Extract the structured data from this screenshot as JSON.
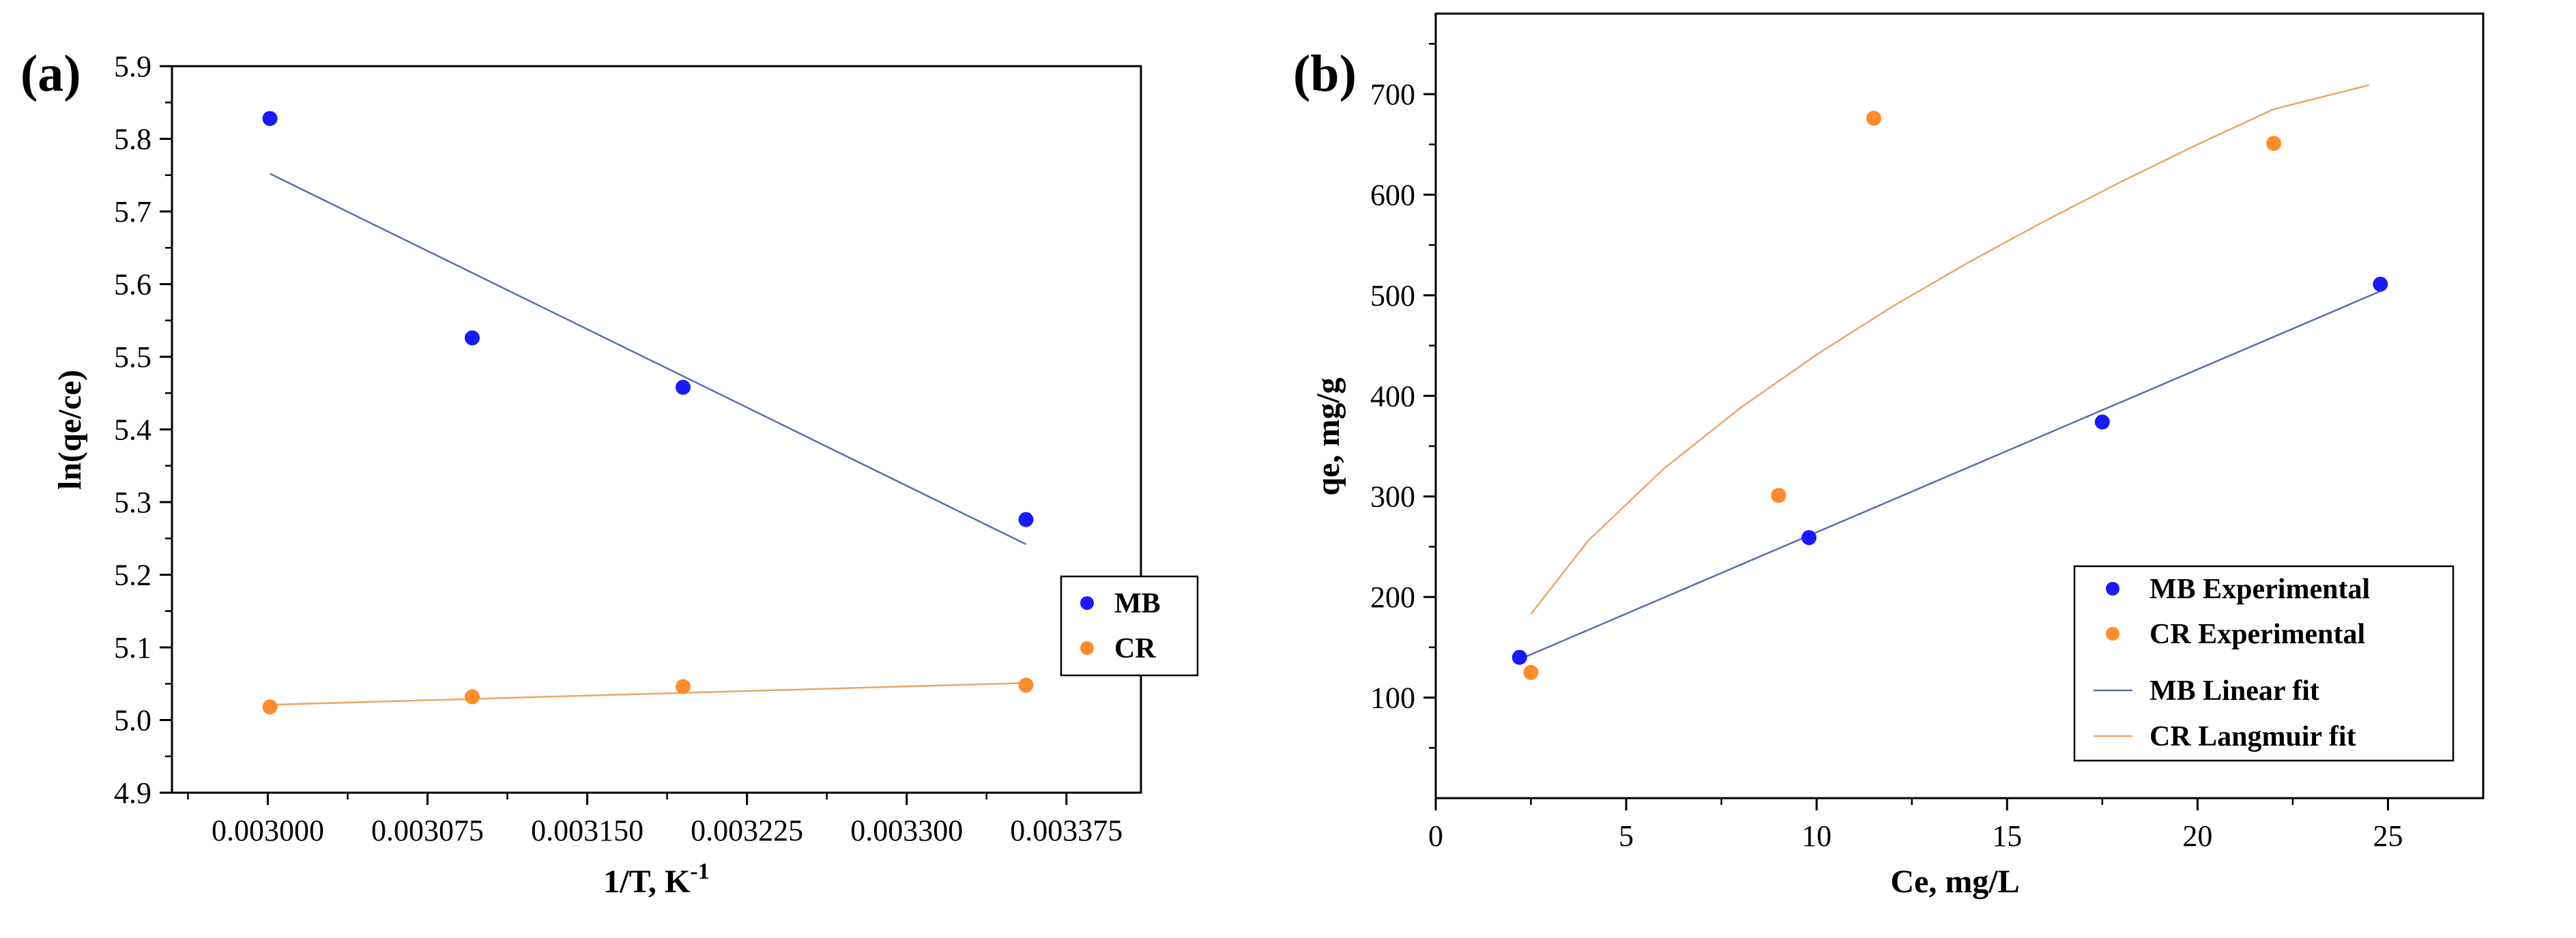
{
  "chart_data": [
    {
      "panel": "(a)",
      "type": "scatter",
      "xlabel": "1/T, K",
      "xlabel_sup": "-1",
      "ylabel": "ln(qe/ce)",
      "xlim": [
        0.002955,
        0.00341
      ],
      "ylim": [
        4.9,
        5.9
      ],
      "xticks": [
        0.003,
        0.003075,
        0.00315,
        0.003225,
        0.0033,
        0.003375
      ],
      "xtick_labels": [
        "0.003000",
        "0.003075",
        "0.003150",
        "0.003225",
        "0.003300",
        "0.003375"
      ],
      "yticks": [
        4.9,
        5.0,
        5.1,
        5.2,
        5.3,
        5.4,
        5.5,
        5.6,
        5.7,
        5.8,
        5.9
      ],
      "ytick_labels": [
        "4.9",
        "5.0",
        "5.1",
        "5.2",
        "5.3",
        "5.4",
        "5.5",
        "5.6",
        "5.7",
        "5.8",
        "5.9"
      ],
      "legend": "right",
      "series": [
        {
          "name": "MB",
          "kind": "points",
          "color": "#1a1aff",
          "x": [
            0.003001,
            0.003096,
            0.003195,
            0.003356
          ],
          "y": [
            5.828,
            5.526,
            5.458,
            5.276
          ]
        },
        {
          "name": "CR",
          "kind": "points",
          "color": "#ff8c2a",
          "x": [
            0.003001,
            0.003096,
            0.003195,
            0.003356
          ],
          "y": [
            5.018,
            5.032,
            5.046,
            5.048
          ]
        },
        {
          "name": "MB fit",
          "kind": "line",
          "color": "#5a6fb0",
          "legend": false,
          "x": [
            0.003001,
            0.003356
          ],
          "y": [
            5.752,
            5.242
          ]
        },
        {
          "name": "CR fit",
          "kind": "line",
          "color": "#e8a66a",
          "legend": false,
          "x": [
            0.003001,
            0.003356
          ],
          "y": [
            5.021,
            5.051
          ]
        }
      ]
    },
    {
      "panel": "(b)",
      "type": "scatter",
      "xlabel": "Ce, mg/L",
      "ylabel": "qe, mg/g",
      "xlim": [
        0,
        27.5
      ],
      "ylim": [
        0,
        780
      ],
      "xticks": [
        0,
        5,
        10,
        15,
        20,
        25
      ],
      "xtick_labels": [
        "0",
        "5",
        "10",
        "15",
        "20",
        "25"
      ],
      "yticks": [
        100,
        200,
        300,
        400,
        500,
        600,
        700
      ],
      "ytick_labels": [
        "100",
        "200",
        "300",
        "400",
        "500",
        "600",
        "700"
      ],
      "legend": "bottom-right",
      "series": [
        {
          "name": "MB Experimental",
          "kind": "points",
          "color": "#1a1aff",
          "x": [
            2.2,
            9.8,
            17.5,
            24.8
          ],
          "y": [
            140,
            259,
            374,
            511
          ]
        },
        {
          "name": "CR Experimental",
          "kind": "points",
          "color": "#ff8c2a",
          "x": [
            2.5,
            9.0,
            11.5,
            22.0
          ],
          "y": [
            125,
            301,
            676,
            651
          ]
        },
        {
          "name": "MB Linear fit",
          "kind": "line",
          "color": "#5a6fb0",
          "x": [
            2.2,
            24.8
          ],
          "y": [
            138,
            504
          ]
        },
        {
          "name": "CR Langmuir fit",
          "kind": "line",
          "color": "#e8a66a",
          "x": [
            2.5,
            4,
            6,
            8,
            10,
            12,
            14,
            16,
            18,
            20,
            22,
            24.5
          ],
          "y": [
            183,
            256,
            328,
            388,
            441,
            489,
            533,
            574,
            613,
            650,
            685,
            709
          ]
        }
      ]
    }
  ]
}
